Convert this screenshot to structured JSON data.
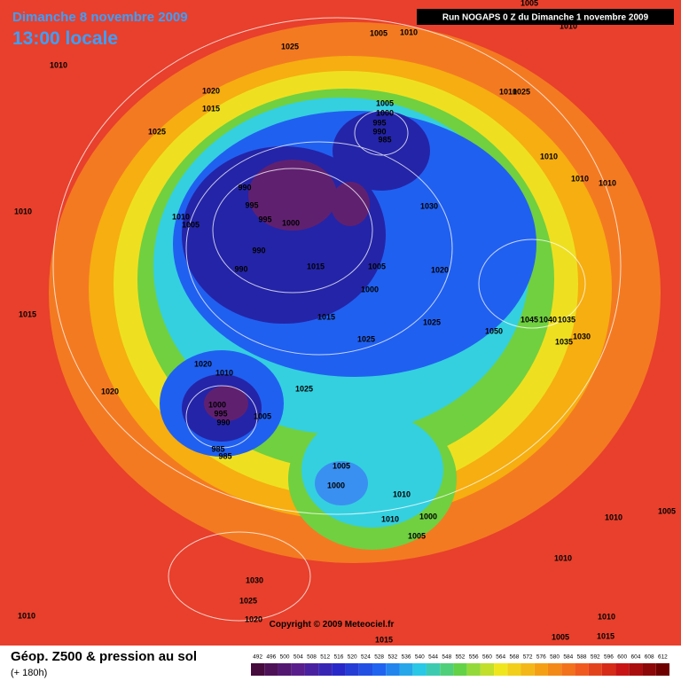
{
  "header": {
    "date": "Dimanche 8 novembre 2009",
    "time": "13:00 locale",
    "run": "Run NOGAPS 0 Z du Dimanche 1 novembre 2009"
  },
  "isobars": [
    1005,
    1005,
    1010,
    1010,
    1025,
    1010,
    1020,
    1015,
    1025,
    1005,
    1000,
    995,
    990,
    985,
    1010,
    1025,
    1010,
    1010,
    1010,
    990,
    995,
    1010,
    1005,
    995,
    1000,
    1030,
    1010,
    990,
    990,
    1015,
    1005,
    1020,
    1000,
    1015,
    1025,
    1045,
    1040,
    1035,
    1050,
    1030,
    1035,
    1025,
    1015,
    1020,
    1010,
    1025,
    1020,
    1000,
    995,
    990,
    1005,
    985,
    985,
    1005,
    1000,
    1010,
    1010,
    1000,
    1005,
    1010,
    1005,
    1010,
    1030,
    1025,
    1020,
    1010,
    1010,
    1015,
    1005,
    1015
  ],
  "footer": {
    "title": "Géop. Z500 & pression au sol",
    "lead": "(+ 180h)",
    "copyright": "Copyright © 2009 Meteociel.fr",
    "scale": [
      492,
      496,
      500,
      504,
      508,
      512,
      516,
      520,
      524,
      528,
      532,
      536,
      540,
      544,
      548,
      552,
      556,
      560,
      564,
      568,
      572,
      576,
      580,
      584,
      588,
      592,
      596,
      600,
      604,
      608,
      612
    ]
  }
}
